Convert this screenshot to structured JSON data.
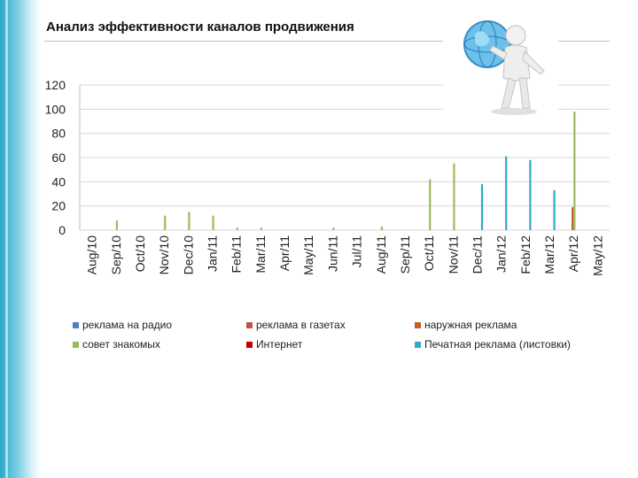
{
  "slide": {
    "title": "Анализ эффективности каналов продвижения",
    "figure_icon": "person-with-globe-icon"
  },
  "chart_data": {
    "type": "bar",
    "title": "",
    "xlabel": "",
    "ylabel": "",
    "ylim": [
      0,
      120
    ],
    "yticks": [
      "0",
      "20",
      "40",
      "60",
      "80",
      "100",
      "120"
    ],
    "grid": true,
    "legend_position": "bottom",
    "categories": [
      "Aug/10",
      "Sep/10",
      "Oct/10",
      "Nov/10",
      "Dec/10",
      "Jan/11",
      "Feb/11",
      "Mar/11",
      "Apr/11",
      "May/11",
      "Jun/11",
      "Jul/11",
      "Aug/11",
      "Sep/11",
      "Oct/11",
      "Nov/11",
      "Dec/11",
      "Jan/12",
      "Feb/12",
      "Mar/12",
      "Apr/12",
      "May/12"
    ],
    "series": [
      {
        "name": "реклама на радио",
        "color": "#4f81bd",
        "values": [
          0,
          0,
          0,
          0,
          0,
          0,
          0,
          0,
          0,
          0,
          0,
          0,
          0,
          0,
          0,
          0,
          0,
          0,
          0,
          0,
          0,
          0
        ]
      },
      {
        "name": "реклама в газетах",
        "color": "#c0504d",
        "values": [
          0,
          0,
          0,
          0,
          0,
          0,
          0,
          0,
          0,
          0,
          0,
          0,
          0,
          0,
          0,
          0,
          0,
          0,
          0,
          0,
          0,
          0
        ]
      },
      {
        "name": "наружная реклама",
        "color": "#c0602a",
        "values": [
          0,
          0,
          0,
          0,
          0,
          0,
          0,
          0,
          0,
          0,
          0,
          0,
          0,
          0,
          0,
          0,
          0,
          0,
          0,
          0,
          19,
          0
        ]
      },
      {
        "name": "совет знакомых",
        "color": "#9bbb59",
        "values": [
          0,
          8,
          0,
          12,
          15,
          12,
          2,
          2,
          0,
          0,
          2,
          0,
          3,
          0,
          42,
          55,
          0,
          0,
          0,
          0,
          98,
          0
        ]
      },
      {
        "name": "Интернет",
        "color": "#c00000",
        "values": [
          0,
          0,
          0,
          0,
          0,
          0,
          0,
          0,
          0,
          0,
          0,
          0,
          0,
          0,
          0,
          0,
          0,
          0,
          0,
          0,
          0,
          0
        ]
      },
      {
        "name": "Печатная реклама (листовки)",
        "color": "#31a9c9",
        "values": [
          0,
          0,
          0,
          0,
          0,
          0,
          0,
          0,
          0,
          0,
          0,
          0,
          0,
          0,
          0,
          0,
          38,
          61,
          58,
          33,
          0,
          0
        ]
      }
    ]
  }
}
